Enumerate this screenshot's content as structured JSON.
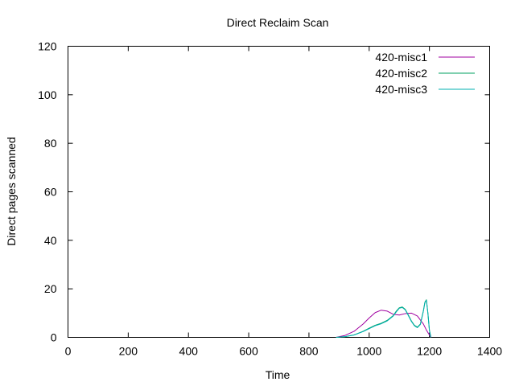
{
  "chart_data": {
    "type": "line",
    "title": "Direct Reclaim Scan",
    "xlabel": "Time",
    "ylabel": "Direct pages scanned",
    "xlim": [
      0,
      1400
    ],
    "ylim": [
      0,
      120
    ],
    "xticks": [
      0,
      200,
      400,
      600,
      800,
      1000,
      1200,
      1400
    ],
    "yticks": [
      0,
      20,
      40,
      60,
      80,
      100,
      120
    ],
    "xtick_labels": [
      "0",
      "200",
      "400",
      "600",
      "800",
      "1000",
      "1200",
      "1400"
    ],
    "ytick_labels": [
      "0",
      "20",
      "40",
      "60",
      "80",
      "100",
      "120"
    ],
    "legend_position": "top-right",
    "series": [
      {
        "name": "420-misc1",
        "color": "#a000a0",
        "x": [
          890,
          920,
          950,
          980,
          1000,
          1020,
          1040,
          1060,
          1080,
          1100,
          1120,
          1140,
          1160,
          1180,
          1190,
          1200,
          1205
        ],
        "y": [
          0,
          0.8,
          2.5,
          5.5,
          8,
          10.2,
          11.2,
          10.8,
          9.5,
          9.2,
          9.8,
          10,
          8.8,
          5.5,
          3,
          1,
          0
        ]
      },
      {
        "name": "420-misc2",
        "color": "#00a060",
        "x": [
          890,
          920,
          950,
          980,
          1000,
          1020,
          1040,
          1060,
          1080,
          1090,
          1100,
          1110,
          1120,
          1130,
          1140,
          1150,
          1160,
          1170,
          1180,
          1185,
          1190,
          1195,
          1200,
          1205
        ],
        "y": [
          0,
          0.3,
          1,
          2.5,
          3.8,
          5,
          5.8,
          7,
          9,
          10.8,
          12.2,
          12.5,
          11.5,
          9.2,
          6.8,
          5,
          4.2,
          5.5,
          11,
          14.5,
          15.5,
          10,
          3,
          0
        ]
      },
      {
        "name": "420-misc3",
        "color": "#00b0b0",
        "x": [
          890,
          920,
          950,
          980,
          1000,
          1020,
          1040,
          1060,
          1080,
          1090,
          1100,
          1110,
          1120,
          1130,
          1140,
          1150,
          1160,
          1170,
          1180,
          1185,
          1190,
          1195,
          1200,
          1205
        ],
        "y": [
          0,
          0.3,
          1,
          2.4,
          3.6,
          4.8,
          5.6,
          6.8,
          8.8,
          10.5,
          12,
          12.3,
          11.3,
          9,
          6.6,
          4.8,
          4,
          5.3,
          10.8,
          14.3,
          15.3,
          9.8,
          2.8,
          0
        ]
      }
    ]
  }
}
